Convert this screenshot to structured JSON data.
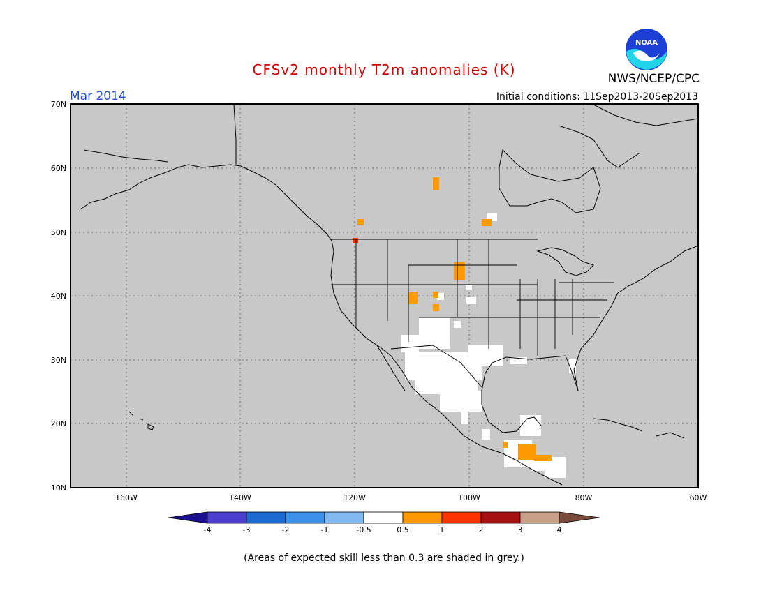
{
  "header": {
    "title": "CFSv2 monthly T2m anomalies (K)",
    "month": "Mar 2014",
    "initial_conditions": "Initial conditions: 11Sep2013-20Sep2013",
    "agency": "NWS/NCEP/CPC",
    "logo_text": "NOAA"
  },
  "map": {
    "lat_labels": [
      "70N",
      "60N",
      "50N",
      "40N",
      "30N",
      "20N",
      "10N"
    ],
    "lon_labels": [
      "160W",
      "140W",
      "120W",
      "100W",
      "80W",
      "60W"
    ],
    "background_color": "#c8c8c8",
    "border_color": "#000000"
  },
  "legend": {
    "labels": [
      "-4",
      "-3",
      "-2",
      "-1",
      "-0.5",
      "0.5",
      "1",
      "2",
      "3",
      "4"
    ],
    "colors": [
      "#1a0f8c",
      "#4c3fd0",
      "#1c6ad1",
      "#3c90e8",
      "#7fb9f0",
      "#ffffff",
      "#ff9900",
      "#ff3300",
      "#a50f0f",
      "#c9a08a",
      "#7a4a3a"
    ]
  },
  "footer": {
    "note": "(Areas of expected skill less than 0.3 are shaded in grey.)"
  }
}
